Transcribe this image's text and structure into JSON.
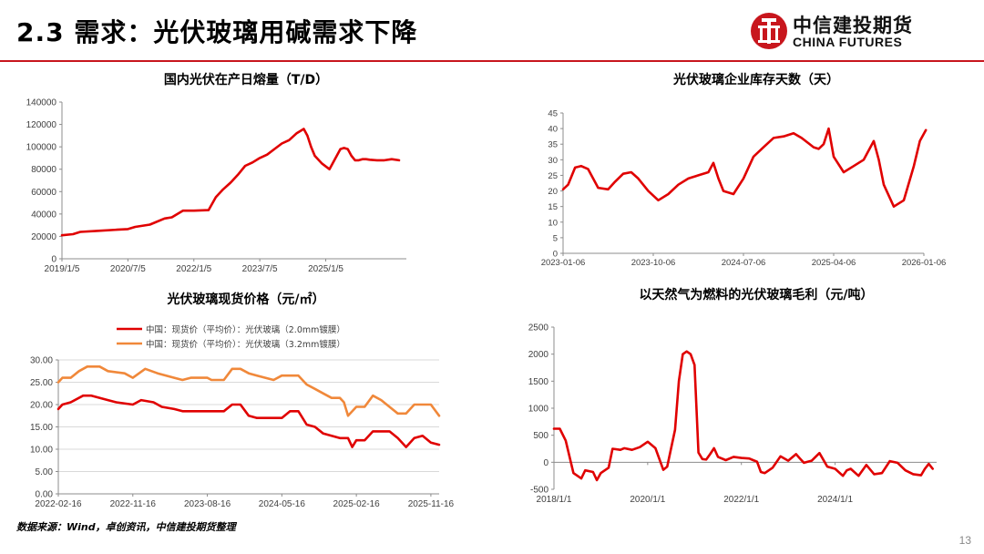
{
  "slide": {
    "title": "2.3 需求：光伏玻璃用碱需求下降",
    "logo_cn": "中信建投期货",
    "logo_en": "CHINA FUTURES",
    "source": "数据来源：Wind，卓创资讯，中信建投期货整理",
    "page_number": "13",
    "accent_color": "#c8161d"
  },
  "chart_data": [
    {
      "id": "melt",
      "type": "line",
      "title": "国内光伏在产日熔量（T/D）",
      "xlabel": "",
      "ylabel": "",
      "x_ticks": [
        "2019/1/5",
        "2020/7/5",
        "2022/1/5",
        "2023/7/5",
        "2025/1/5"
      ],
      "x_tick_pos": [
        0,
        18,
        36,
        54,
        72
      ],
      "x_range": [
        0,
        94
      ],
      "ylim": [
        0,
        140000
      ],
      "y_ticks": [
        "0",
        "20000",
        "40000",
        "60000",
        "80000",
        "100000",
        "120000",
        "140000"
      ],
      "grid": false,
      "series": [
        {
          "color": "#e00000",
          "x": [
            0,
            3,
            5,
            10,
            15,
            18,
            20,
            24,
            28,
            30,
            33,
            36,
            40,
            42,
            44,
            46,
            48,
            50,
            52,
            54,
            56,
            58,
            60,
            62,
            64,
            66,
            67,
            68,
            69,
            71,
            73,
            75,
            76,
            77,
            78,
            79,
            80,
            81,
            82,
            83,
            84,
            86,
            88,
            90,
            92
          ],
          "y": [
            21000,
            22000,
            24000,
            25000,
            26000,
            26500,
            28500,
            30500,
            36000,
            37000,
            43000,
            43000,
            43500,
            55000,
            62000,
            68000,
            75000,
            83000,
            86000,
            90000,
            93000,
            98000,
            103000,
            106000,
            112000,
            116000,
            110000,
            100000,
            92000,
            85000,
            80000,
            92000,
            98000,
            99000,
            98000,
            92000,
            88000,
            88000,
            89000,
            89000,
            88500,
            88000,
            88000,
            89000,
            88000
          ]
        }
      ]
    },
    {
      "id": "inventory",
      "type": "line",
      "title": "光伏玻璃企业库存天数（天）",
      "xlabel": "",
      "ylabel": "",
      "x_ticks": [
        "2023-01-06",
        "2023-10-06",
        "2024-07-06",
        "2025-04-06",
        "2026-01-06"
      ],
      "x_tick_pos": [
        0,
        9,
        18,
        27,
        36
      ],
      "x_range": [
        0,
        36
      ],
      "ylim": [
        0,
        45
      ],
      "y_ticks": [
        "0",
        "5",
        "10",
        "15",
        "20",
        "25",
        "30",
        "35",
        "40",
        "45"
      ],
      "grid": false,
      "series": [
        {
          "color": "#e00000",
          "x": [
            0,
            0.5,
            1.2,
            1.8,
            2.5,
            3.5,
            4.5,
            5.2,
            6,
            6.8,
            7.5,
            8.5,
            9.5,
            10.5,
            11.5,
            12.5,
            13.5,
            14.5,
            15,
            15.5,
            16,
            17,
            18,
            19,
            20,
            21,
            22,
            23,
            23.8,
            25,
            25.5,
            26,
            26.5,
            27,
            28,
            29,
            30,
            31,
            31.5,
            32,
            33,
            34,
            35,
            35.6,
            36.2
          ],
          "y": [
            20.5,
            22,
            27.5,
            28,
            27,
            21,
            20.5,
            23,
            25.5,
            26,
            24,
            20,
            17,
            19,
            22,
            24,
            25,
            26,
            29,
            24,
            20,
            19,
            24,
            31,
            34,
            37,
            37.5,
            38.5,
            37,
            34,
            33.5,
            35,
            40,
            31,
            26,
            28,
            30,
            36,
            30,
            22,
            15,
            17,
            28,
            36,
            39.5
          ]
        }
      ]
    },
    {
      "id": "price",
      "type": "line",
      "title": "光伏玻璃现货价格（元/㎡）",
      "xlabel": "",
      "ylabel": "",
      "x_ticks": [
        "2022-02-16",
        "2022-11-16",
        "2023-08-16",
        "2024-05-16",
        "2025-02-16",
        "2025-11-16"
      ],
      "x_tick_pos": [
        0,
        9,
        18,
        27,
        36,
        45
      ],
      "x_range": [
        0,
        46
      ],
      "ylim": [
        0,
        30
      ],
      "y_ticks": [
        "0.00",
        "5.00",
        "10.00",
        "15.00",
        "20.00",
        "25.00",
        "30.00"
      ],
      "grid": true,
      "series": [
        {
          "name": "中国：现货价（平均价）：光伏玻璃（2.0mm镀膜）",
          "color": "#e00000",
          "x": [
            0,
            0.5,
            1.5,
            3,
            4,
            6,
            7,
            9,
            10,
            11.5,
            12.5,
            14,
            15,
            17,
            18,
            20,
            21,
            22,
            23,
            24,
            26,
            27,
            28,
            29,
            30,
            31,
            32,
            33,
            34,
            35,
            35.5,
            36,
            37,
            38,
            39,
            40,
            41,
            42,
            43,
            44,
            45,
            46
          ],
          "y": [
            19,
            20,
            20.5,
            22,
            22,
            21,
            20.5,
            20,
            21,
            20.5,
            19.5,
            19,
            18.5,
            18.5,
            18.5,
            18.5,
            20,
            20,
            17.5,
            17,
            17,
            17,
            18.5,
            18.5,
            15.5,
            15,
            13.5,
            13,
            12.5,
            12.5,
            10.5,
            12,
            12,
            14,
            14,
            14,
            12.5,
            10.5,
            12.5,
            13,
            11.5,
            11
          ]
        },
        {
          "name": "中国：现货价（平均价）：光伏玻璃（3.2mm镀膜）",
          "color": "#f0883a",
          "x": [
            0,
            0.5,
            1.5,
            2.5,
            3.5,
            5,
            6,
            8,
            9,
            10.5,
            12,
            14,
            15,
            16,
            17,
            18,
            18.5,
            20,
            21,
            22,
            23,
            24,
            25,
            26,
            27,
            28,
            29,
            30,
            31,
            32,
            33,
            34,
            34.5,
            35,
            36,
            37,
            38,
            39,
            40,
            41,
            42,
            43,
            44,
            45,
            46
          ],
          "y": [
            25,
            26,
            26,
            27.5,
            28.5,
            28.5,
            27.5,
            27,
            26,
            28,
            27,
            26,
            25.5,
            26,
            26,
            26,
            25.5,
            25.5,
            28,
            28,
            27,
            26.5,
            26,
            25.5,
            26.5,
            26.5,
            26.5,
            24.5,
            23.5,
            22.5,
            21.5,
            21.5,
            20.5,
            17.5,
            19.5,
            19.5,
            22,
            21,
            19.5,
            18,
            18,
            20,
            20,
            20,
            17.5
          ]
        }
      ]
    },
    {
      "id": "margin",
      "type": "line",
      "title": "以天然气为燃料的光伏玻璃毛利（元/吨）",
      "xlabel": "",
      "ylabel": "",
      "x_ticks": [
        "2018/1/1",
        "2020/1/1",
        "2022/1/1",
        "2024/1/1"
      ],
      "x_tick_pos": [
        0,
        24,
        48,
        72
      ],
      "x_range": [
        0,
        98
      ],
      "ylim": [
        -500,
        2500
      ],
      "y_ticks": [
        "-500",
        "0",
        "500",
        "1000",
        "1500",
        "2000",
        "2500"
      ],
      "grid": false,
      "series": [
        {
          "color": "#e00000",
          "x": [
            0,
            1.5,
            3,
            5,
            7,
            8,
            10,
            11,
            12,
            14,
            15,
            17,
            18,
            20,
            22,
            24,
            26,
            28,
            29,
            31,
            32,
            33,
            34,
            35,
            36,
            37,
            38,
            39,
            40,
            41,
            42,
            44,
            46,
            48,
            50,
            51,
            52,
            53,
            54,
            56,
            58,
            60,
            62,
            63,
            64,
            66,
            68,
            70,
            72,
            74,
            75,
            76,
            78,
            80,
            82,
            84,
            86,
            88,
            90,
            92,
            94,
            95,
            96,
            97
          ],
          "y": [
            620,
            620,
            400,
            -200,
            -300,
            -150,
            -180,
            -330,
            -200,
            -100,
            250,
            230,
            260,
            230,
            280,
            380,
            260,
            -140,
            -80,
            600,
            1500,
            2000,
            2050,
            2000,
            1800,
            180,
            60,
            50,
            150,
            260,
            100,
            40,
            100,
            80,
            70,
            40,
            10,
            -180,
            -200,
            -100,
            110,
            30,
            150,
            70,
            -10,
            30,
            170,
            -80,
            -120,
            -250,
            -150,
            -120,
            -250,
            -50,
            -220,
            -200,
            20,
            -10,
            -150,
            -220,
            -240,
            -120,
            -30,
            -120
          ]
        }
      ]
    }
  ]
}
